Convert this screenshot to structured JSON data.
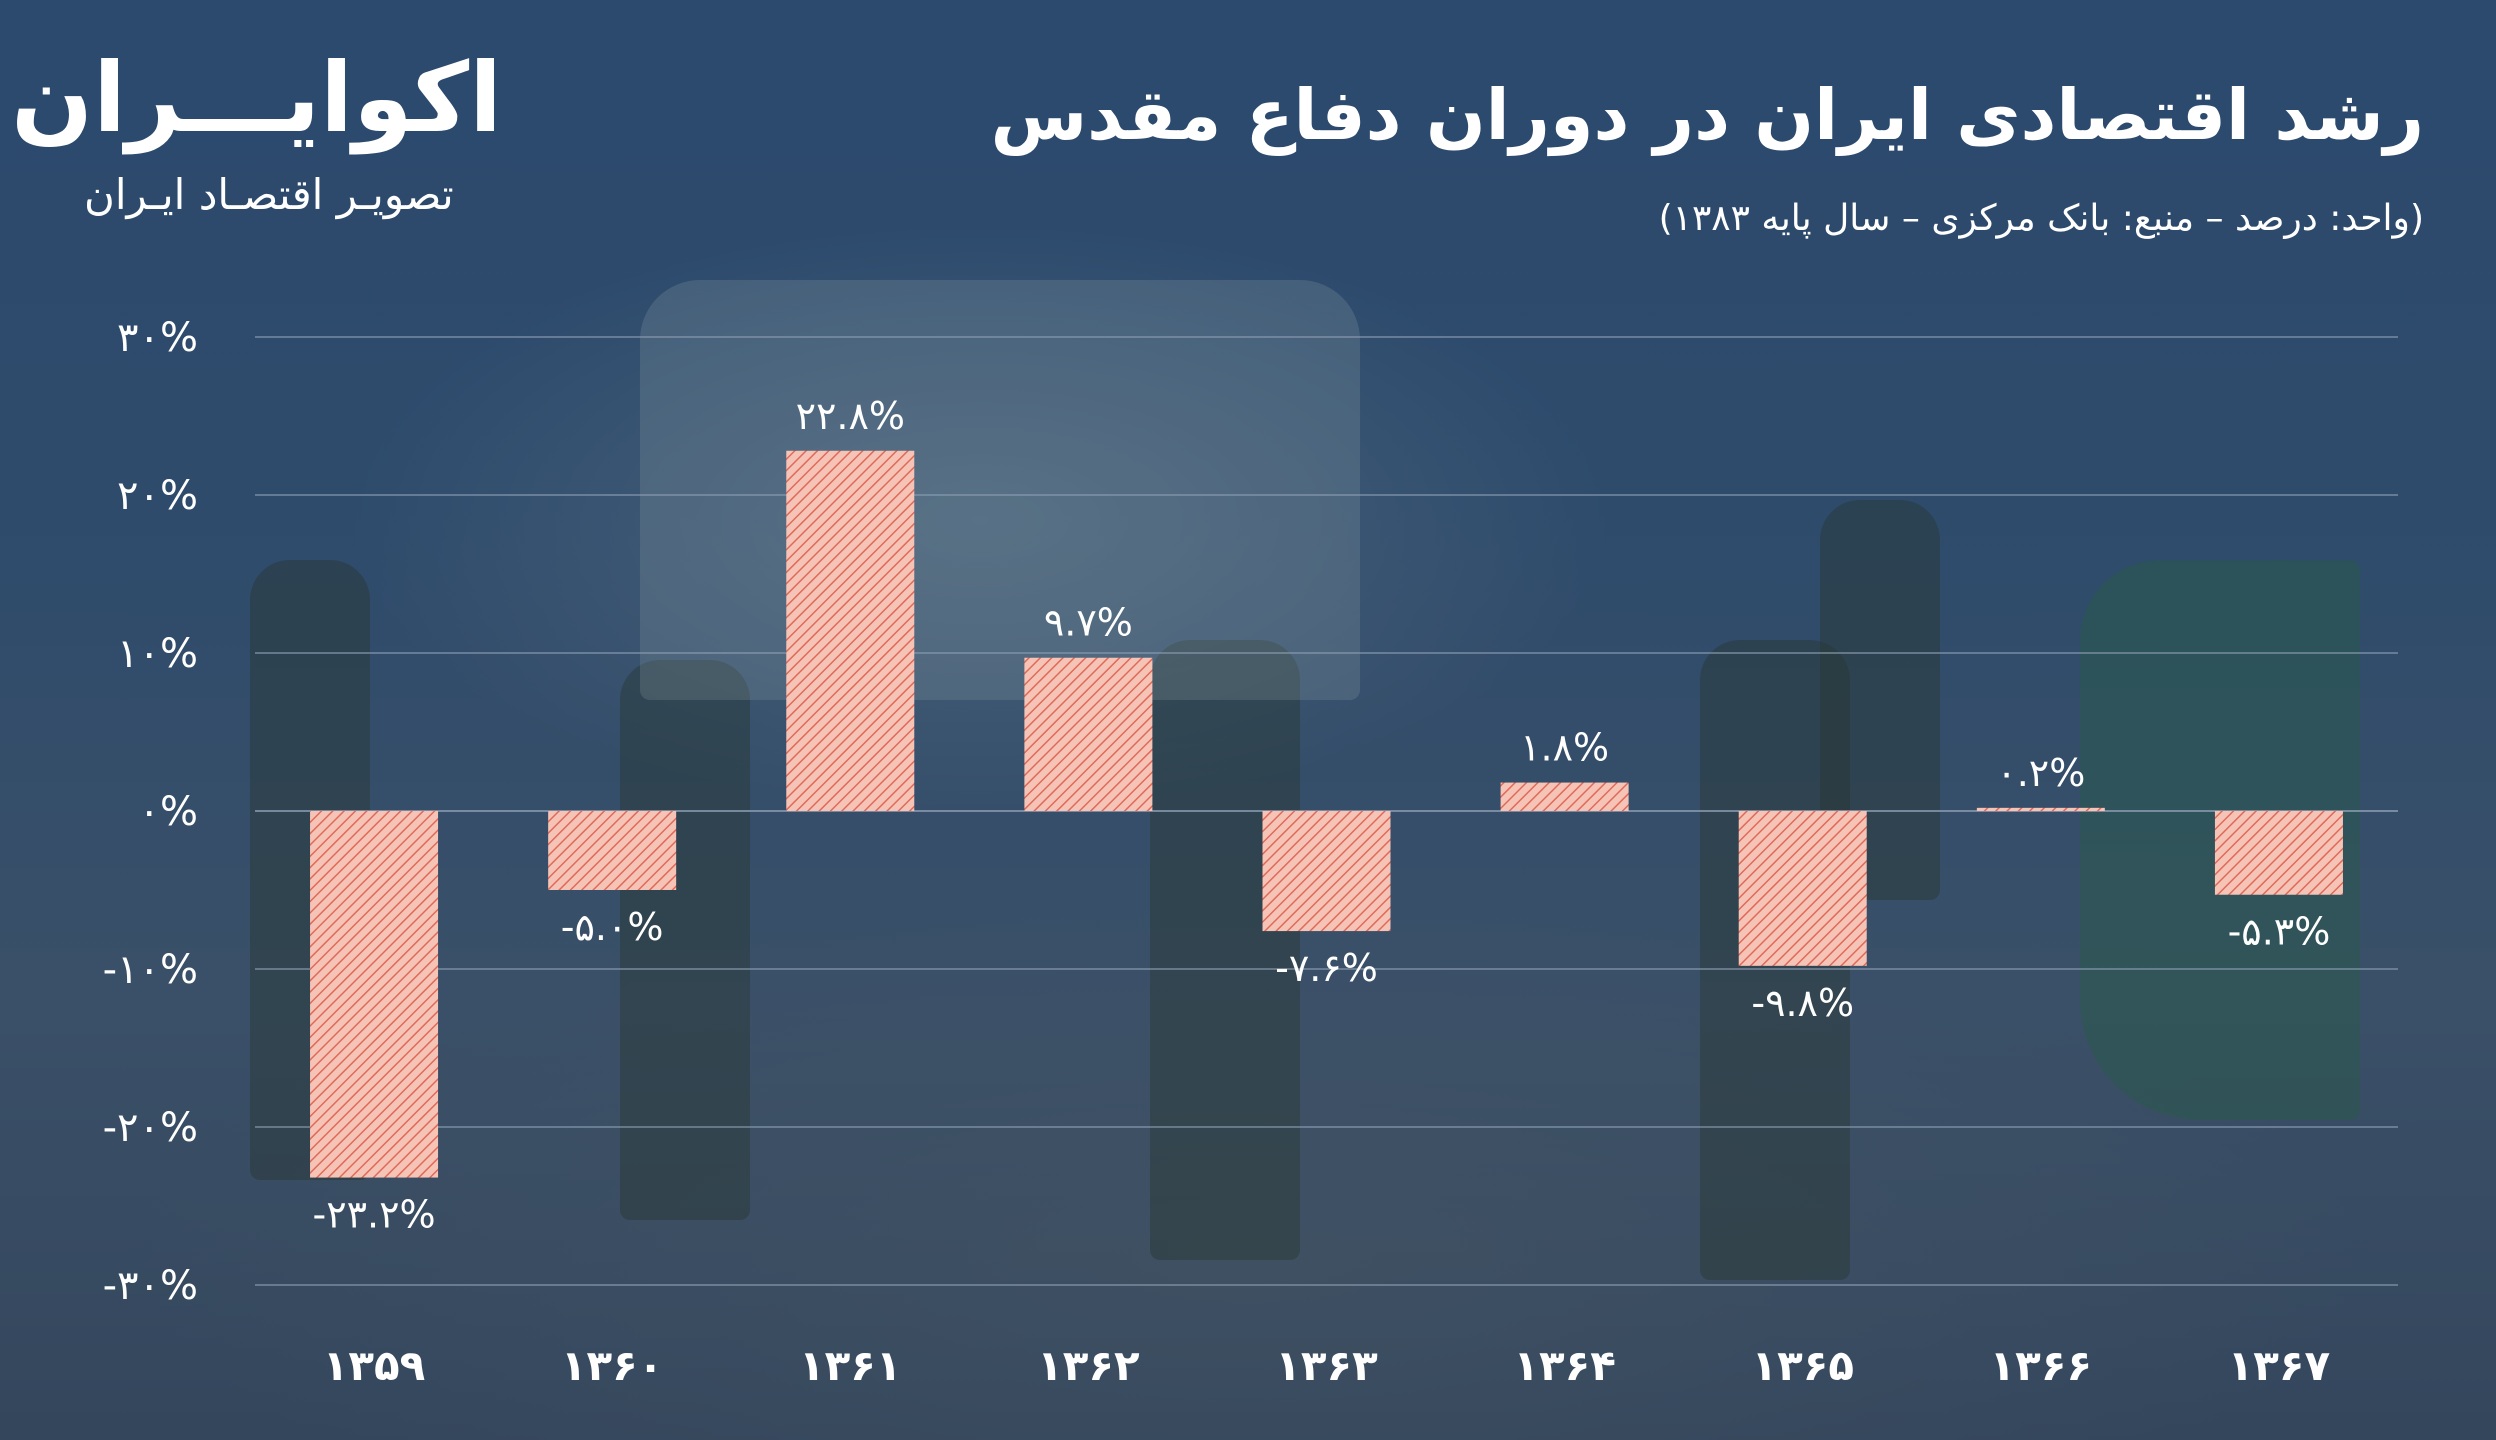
{
  "header": {
    "title": "رشد اقتصادی ایران در دوران دفاع مقدس",
    "subtitle": "(واحد: درصد – منبع: بانک مرکزی – سال پایه ۱۳۸۳)"
  },
  "logo": {
    "name": "اکوایـــران",
    "tagline": "تصویـر اقتصـاد ایـران"
  },
  "colors": {
    "bar_fill": "#f6c4b6",
    "bar_hatch": "#e06a5a",
    "grid": "#8a9bb0",
    "text": "#ffffff"
  },
  "chart_data": {
    "type": "bar",
    "categories": [
      "۱۳۵۹",
      "۱۳۶۰",
      "۱۳۶۱",
      "۱۳۶۲",
      "۱۳۶۳",
      "۱۳۶۴",
      "۱۳۶۵",
      "۱۳۶۶",
      "۱۳۶۷"
    ],
    "values": [
      -23.2,
      -5.0,
      22.8,
      9.7,
      -7.6,
      1.8,
      -9.8,
      0.2,
      -5.3
    ],
    "value_labels": [
      "-۲۳.۲%",
      "-۵.۰%",
      "۲۲.۸%",
      "۹.۷%",
      "-۷.۶%",
      "۱.۸%",
      "-۹.۸%",
      "۰.۲%",
      "-۵.۳%"
    ],
    "y_ticks": [
      30,
      20,
      10,
      0,
      -10,
      -20,
      -30
    ],
    "y_tick_labels": [
      "۳۰%",
      "۲۰%",
      "۱۰%",
      "۰%",
      "-۱۰%",
      "-۲۰%",
      "-۳۰%"
    ],
    "ylim": [
      -30,
      30
    ],
    "grid": true
  }
}
